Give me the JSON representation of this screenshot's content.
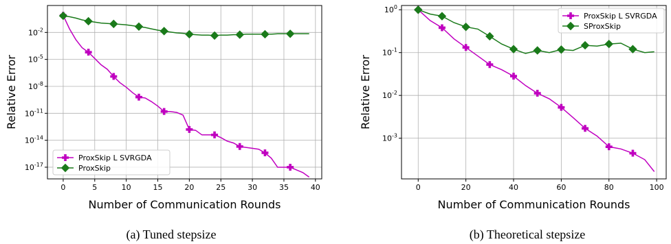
{
  "chart_data": [
    {
      "type": "line",
      "caption": "(a) Tuned stepsize",
      "xlabel": "Number of Communication Rounds",
      "ylabel": "Relative Error",
      "xlim": [
        -2.5,
        41
      ],
      "ylim_log10": [
        -18.3,
        1.0
      ],
      "yscale": "log",
      "grid": true,
      "legend_placement": "lower-left",
      "xticks": [
        0,
        5,
        10,
        15,
        20,
        25,
        30,
        35,
        40
      ],
      "xtick_labels": [
        "0",
        "5",
        "10",
        "15",
        "20",
        "25",
        "30",
        "35",
        "40"
      ],
      "yticks_log10": [
        -2,
        -5,
        -8,
        -11,
        -14,
        -17
      ],
      "ytick_labels": [
        "10^-2",
        "10^-5",
        "10^-8",
        "10^-11",
        "10^-14",
        "10^-17"
      ],
      "series": [
        {
          "name": "ProxSkip L SVRGDA",
          "color": "#c000c0",
          "marker": "plus",
          "markers_every": 4,
          "x": [
            0,
            1,
            2,
            3,
            4,
            5,
            6,
            7,
            8,
            9,
            10,
            11,
            12,
            13,
            14,
            15,
            16,
            17,
            18,
            19,
            20,
            21,
            22,
            23,
            24,
            25,
            26,
            27,
            28,
            29,
            30,
            31,
            32,
            33,
            34,
            35,
            36,
            37,
            38,
            39
          ],
          "y_log10": [
            -0.1,
            -1.6,
            -2.8,
            -3.7,
            -4.2,
            -4.9,
            -5.6,
            -6.1,
            -6.9,
            -7.6,
            -8.1,
            -8.7,
            -9.2,
            -9.3,
            -9.7,
            -10.2,
            -10.8,
            -10.8,
            -10.9,
            -11.2,
            -12.8,
            -12.9,
            -13.4,
            -13.4,
            -13.4,
            -13.7,
            -14.1,
            -14.3,
            -14.7,
            -14.8,
            -14.9,
            -15.0,
            -15.4,
            -16.0,
            -17.0,
            -17.0,
            -17.0,
            -17.3,
            -17.6,
            -18.1
          ]
        },
        {
          "name": "ProxSkip",
          "color": "#1a7a1a",
          "marker": "diamond",
          "markers_every": 4,
          "x": [
            0,
            1,
            2,
            3,
            4,
            5,
            6,
            7,
            8,
            9,
            10,
            11,
            12,
            13,
            14,
            15,
            16,
            17,
            18,
            19,
            20,
            21,
            22,
            23,
            24,
            25,
            26,
            27,
            28,
            29,
            30,
            31,
            32,
            33,
            34,
            35,
            36,
            37,
            38,
            39
          ],
          "y_log10": [
            -0.15,
            -0.25,
            -0.4,
            -0.6,
            -0.75,
            -0.85,
            -0.95,
            -1.0,
            -1.05,
            -1.1,
            -1.15,
            -1.25,
            -1.35,
            -1.45,
            -1.6,
            -1.75,
            -1.85,
            -1.95,
            -2.05,
            -2.1,
            -2.2,
            -2.25,
            -2.3,
            -2.3,
            -2.35,
            -2.3,
            -2.3,
            -2.25,
            -2.25,
            -2.2,
            -2.2,
            -2.2,
            -2.2,
            -2.2,
            -2.15,
            -2.15,
            -2.15,
            -2.15,
            -2.15,
            -2.15
          ]
        }
      ]
    },
    {
      "type": "line",
      "caption": "(b) Theoretical stepsize",
      "xlabel": "Number of Communication Rounds",
      "ylabel": "Relative Error",
      "xlim": [
        -7,
        104
      ],
      "ylim_log10": [
        -3.95,
        0.1
      ],
      "yscale": "log",
      "grid": true,
      "legend_placement": "upper-right",
      "xticks": [
        0,
        20,
        40,
        60,
        80,
        100
      ],
      "xtick_labels": [
        "0",
        "20",
        "40",
        "60",
        "80",
        "100"
      ],
      "yticks_log10": [
        0,
        -1,
        -2,
        -3
      ],
      "ytick_labels": [
        "10^0",
        "10^-1",
        "10^-2",
        "10^-3"
      ],
      "series": [
        {
          "name": "ProxSkip L SVRGDA",
          "color": "#c000c0",
          "marker": "plus",
          "markers_every": 10,
          "x": [
            0,
            5,
            10,
            15,
            20,
            25,
            30,
            35,
            40,
            45,
            50,
            55,
            60,
            65,
            70,
            75,
            80,
            85,
            90,
            95,
            99
          ],
          "y_log10": [
            0.0,
            -0.25,
            -0.42,
            -0.68,
            -0.88,
            -1.08,
            -1.28,
            -1.4,
            -1.55,
            -1.77,
            -1.95,
            -2.08,
            -2.28,
            -2.52,
            -2.77,
            -2.95,
            -3.2,
            -3.25,
            -3.35,
            -3.5,
            -3.78
          ]
        },
        {
          "name": "SProxSkip",
          "color": "#1a7a1a",
          "marker": "diamond",
          "markers_every": 10,
          "x": [
            0,
            5,
            10,
            15,
            20,
            25,
            30,
            35,
            40,
            45,
            50,
            55,
            60,
            65,
            70,
            75,
            80,
            85,
            90,
            95,
            99
          ],
          "y_log10": [
            0.0,
            -0.1,
            -0.15,
            -0.3,
            -0.4,
            -0.45,
            -0.62,
            -0.8,
            -0.92,
            -1.02,
            -0.95,
            -1.0,
            -0.93,
            -0.95,
            -0.83,
            -0.85,
            -0.8,
            -0.78,
            -0.92,
            -1.0,
            -0.98
          ]
        }
      ]
    }
  ]
}
